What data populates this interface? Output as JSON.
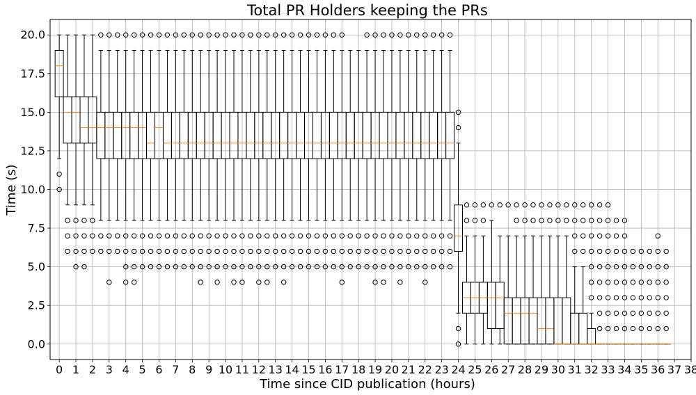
{
  "chart_data": {
    "type": "box",
    "title": "Total PR Holders keeping the PRs",
    "xlabel": "Time since CID publication (hours)",
    "ylabel": "Time (s)",
    "xlim": [
      -0.55,
      38.0
    ],
    "ylim": [
      -1.0,
      21.0
    ],
    "x_ticks": [
      0,
      1,
      2,
      3,
      4,
      5,
      6,
      7,
      8,
      9,
      10,
      11,
      12,
      13,
      14,
      15,
      16,
      17,
      18,
      19,
      20,
      21,
      22,
      23,
      24,
      25,
      26,
      27,
      28,
      29,
      30,
      31,
      32,
      33,
      34,
      35,
      36,
      37,
      38
    ],
    "y_ticks": [
      0.0,
      2.5,
      5.0,
      7.5,
      10.0,
      12.5,
      15.0,
      17.5,
      20.0
    ],
    "y_tick_labels": [
      "0.0",
      "2.5",
      "5.0",
      "7.5",
      "10.0",
      "12.5",
      "15.0",
      "17.5",
      "20.0"
    ],
    "grid": true,
    "colors": {
      "box": "#000000",
      "median": "#ff7f0e",
      "grid": "#b0b0b0",
      "flier": "#000000"
    },
    "box_width": 0.5,
    "boxes": [
      {
        "x": 0.0,
        "q1": 16,
        "median": 18,
        "q3": 19,
        "whislo": 12,
        "whishi": 20,
        "fliers": [
          10,
          11
        ]
      },
      {
        "x": 0.5,
        "q1": 13,
        "median": 15,
        "q3": 16,
        "whislo": 9,
        "whishi": 20,
        "fliers": [
          6,
          7,
          8
        ]
      },
      {
        "x": 1.0,
        "q1": 13,
        "median": 15,
        "q3": 16,
        "whislo": 9,
        "whishi": 20,
        "fliers": [
          5,
          6,
          7,
          8
        ]
      },
      {
        "x": 1.5,
        "q1": 13,
        "median": 14,
        "q3": 16,
        "whislo": 9,
        "whishi": 20,
        "fliers": [
          5,
          6,
          7,
          8
        ]
      },
      {
        "x": 2.0,
        "q1": 13,
        "median": 14,
        "q3": 16,
        "whislo": 9,
        "whishi": 20,
        "fliers": [
          6,
          7,
          8
        ]
      },
      {
        "x": 2.5,
        "q1": 12,
        "median": 14,
        "q3": 15,
        "whislo": 8,
        "whishi": 19,
        "fliers": [
          6,
          7,
          20
        ]
      },
      {
        "x": 3.0,
        "q1": 12,
        "median": 14,
        "q3": 15,
        "whislo": 8,
        "whishi": 19,
        "fliers": [
          4,
          6,
          7,
          20
        ]
      },
      {
        "x": 3.5,
        "q1": 12,
        "median": 14,
        "q3": 15,
        "whislo": 8,
        "whishi": 19,
        "fliers": [
          6,
          7,
          20
        ]
      },
      {
        "x": 4.0,
        "q1": 12,
        "median": 14,
        "q3": 15,
        "whislo": 8,
        "whishi": 19,
        "fliers": [
          4,
          5,
          6,
          7,
          20
        ]
      },
      {
        "x": 4.5,
        "q1": 12,
        "median": 14,
        "q3": 15,
        "whislo": 8,
        "whishi": 19,
        "fliers": [
          4,
          5,
          6,
          7,
          20
        ]
      },
      {
        "x": 5.0,
        "q1": 12,
        "median": 14,
        "q3": 15,
        "whislo": 8,
        "whishi": 19,
        "fliers": [
          5,
          6,
          7,
          20
        ]
      },
      {
        "x": 5.5,
        "q1": 12,
        "median": 13,
        "q3": 15,
        "whislo": 8,
        "whishi": 19,
        "fliers": [
          5,
          6,
          7,
          20
        ]
      },
      {
        "x": 6.0,
        "q1": 12,
        "median": 14,
        "q3": 15,
        "whislo": 8,
        "whishi": 19,
        "fliers": [
          5,
          6,
          7,
          20
        ]
      },
      {
        "x": 6.5,
        "q1": 12,
        "median": 13,
        "q3": 15,
        "whislo": 8,
        "whishi": 19,
        "fliers": [
          5,
          6,
          7,
          20
        ]
      },
      {
        "x": 7.0,
        "q1": 12,
        "median": 13,
        "q3": 15,
        "whislo": 8,
        "whishi": 19,
        "fliers": [
          5,
          6,
          7,
          20
        ]
      },
      {
        "x": 7.5,
        "q1": 12,
        "median": 13,
        "q3": 15,
        "whislo": 8,
        "whishi": 19,
        "fliers": [
          5,
          6,
          7,
          20
        ]
      },
      {
        "x": 8.0,
        "q1": 12,
        "median": 13,
        "q3": 15,
        "whislo": 8,
        "whishi": 19,
        "fliers": [
          5,
          6,
          7,
          20
        ]
      },
      {
        "x": 8.5,
        "q1": 12,
        "median": 13,
        "q3": 15,
        "whislo": 8,
        "whishi": 19,
        "fliers": [
          4,
          5,
          6,
          7,
          20
        ]
      },
      {
        "x": 9.0,
        "q1": 12,
        "median": 13,
        "q3": 15,
        "whislo": 8,
        "whishi": 19,
        "fliers": [
          5,
          6,
          7,
          20
        ]
      },
      {
        "x": 9.5,
        "q1": 12,
        "median": 13,
        "q3": 15,
        "whislo": 8,
        "whishi": 19,
        "fliers": [
          4,
          5,
          6,
          7,
          20
        ]
      },
      {
        "x": 10.0,
        "q1": 12,
        "median": 13,
        "q3": 15,
        "whislo": 8,
        "whishi": 19,
        "fliers": [
          5,
          6,
          7,
          20
        ]
      },
      {
        "x": 10.5,
        "q1": 12,
        "median": 13,
        "q3": 15,
        "whislo": 8,
        "whishi": 19,
        "fliers": [
          4,
          5,
          6,
          7,
          20
        ]
      },
      {
        "x": 11.0,
        "q1": 12,
        "median": 13,
        "q3": 15,
        "whislo": 8,
        "whishi": 19,
        "fliers": [
          4,
          5,
          6,
          7,
          20
        ]
      },
      {
        "x": 11.5,
        "q1": 12,
        "median": 13,
        "q3": 15,
        "whislo": 8,
        "whishi": 19,
        "fliers": [
          5,
          6,
          7,
          20
        ]
      },
      {
        "x": 12.0,
        "q1": 12,
        "median": 13,
        "q3": 15,
        "whislo": 8,
        "whishi": 19,
        "fliers": [
          4,
          5,
          6,
          7,
          20
        ]
      },
      {
        "x": 12.5,
        "q1": 12,
        "median": 13,
        "q3": 15,
        "whislo": 8,
        "whishi": 19,
        "fliers": [
          4,
          5,
          6,
          7,
          20
        ]
      },
      {
        "x": 13.0,
        "q1": 12,
        "median": 13,
        "q3": 15,
        "whislo": 8,
        "whishi": 19,
        "fliers": [
          5,
          6,
          7,
          20
        ]
      },
      {
        "x": 13.5,
        "q1": 12,
        "median": 13,
        "q3": 15,
        "whislo": 8,
        "whishi": 19,
        "fliers": [
          4,
          5,
          6,
          7,
          20
        ]
      },
      {
        "x": 14.0,
        "q1": 12,
        "median": 13,
        "q3": 15,
        "whislo": 8,
        "whishi": 19,
        "fliers": [
          5,
          6,
          7,
          20
        ]
      },
      {
        "x": 14.5,
        "q1": 12,
        "median": 13,
        "q3": 15,
        "whislo": 8,
        "whishi": 19,
        "fliers": [
          5,
          6,
          7,
          20
        ]
      },
      {
        "x": 15.0,
        "q1": 12,
        "median": 13,
        "q3": 15,
        "whislo": 8,
        "whishi": 19,
        "fliers": [
          5,
          6,
          7,
          20
        ]
      },
      {
        "x": 15.5,
        "q1": 12,
        "median": 13,
        "q3": 15,
        "whislo": 8,
        "whishi": 19,
        "fliers": [
          5,
          6,
          7,
          20
        ]
      },
      {
        "x": 16.0,
        "q1": 12,
        "median": 13,
        "q3": 15,
        "whislo": 8,
        "whishi": 19,
        "fliers": [
          5,
          6,
          7,
          20
        ]
      },
      {
        "x": 16.5,
        "q1": 12,
        "median": 13,
        "q3": 15,
        "whislo": 8,
        "whishi": 19,
        "fliers": [
          5,
          6,
          7,
          20
        ]
      },
      {
        "x": 17.0,
        "q1": 12,
        "median": 13,
        "q3": 15,
        "whislo": 8,
        "whishi": 19,
        "fliers": [
          4,
          5,
          6,
          7,
          20
        ]
      },
      {
        "x": 17.5,
        "q1": 12,
        "median": 13,
        "q3": 15,
        "whislo": 8,
        "whishi": 19,
        "fliers": [
          5,
          6,
          7
        ]
      },
      {
        "x": 18.0,
        "q1": 12,
        "median": 13,
        "q3": 15,
        "whislo": 8,
        "whishi": 19,
        "fliers": [
          5,
          6,
          7
        ]
      },
      {
        "x": 18.5,
        "q1": 12,
        "median": 13,
        "q3": 15,
        "whislo": 8,
        "whishi": 19,
        "fliers": [
          5,
          6,
          7,
          20
        ]
      },
      {
        "x": 19.0,
        "q1": 12,
        "median": 13,
        "q3": 15,
        "whislo": 8,
        "whishi": 19,
        "fliers": [
          4,
          5,
          6,
          7,
          20
        ]
      },
      {
        "x": 19.5,
        "q1": 12,
        "median": 13,
        "q3": 15,
        "whislo": 8,
        "whishi": 19,
        "fliers": [
          4,
          5,
          6,
          7,
          20
        ]
      },
      {
        "x": 20.0,
        "q1": 12,
        "median": 13,
        "q3": 15,
        "whislo": 8,
        "whishi": 19,
        "fliers": [
          5,
          6,
          7,
          20
        ]
      },
      {
        "x": 20.5,
        "q1": 12,
        "median": 13,
        "q3": 15,
        "whislo": 8,
        "whishi": 19,
        "fliers": [
          4,
          5,
          6,
          7,
          20
        ]
      },
      {
        "x": 21.0,
        "q1": 12,
        "median": 13,
        "q3": 15,
        "whislo": 8,
        "whishi": 19,
        "fliers": [
          5,
          6,
          7,
          20
        ]
      },
      {
        "x": 21.5,
        "q1": 12,
        "median": 13,
        "q3": 15,
        "whislo": 8,
        "whishi": 19,
        "fliers": [
          5,
          6,
          7,
          20
        ]
      },
      {
        "x": 22.0,
        "q1": 12,
        "median": 13,
        "q3": 15,
        "whislo": 8,
        "whishi": 19,
        "fliers": [
          4,
          5,
          6,
          7,
          20
        ]
      },
      {
        "x": 22.5,
        "q1": 12,
        "median": 13,
        "q3": 15,
        "whislo": 8,
        "whishi": 19,
        "fliers": [
          5,
          6,
          7,
          20
        ]
      },
      {
        "x": 23.0,
        "q1": 12,
        "median": 13,
        "q3": 15,
        "whislo": 8,
        "whishi": 19,
        "fliers": [
          5,
          6,
          7,
          20
        ]
      },
      {
        "x": 23.5,
        "q1": 12,
        "median": 13,
        "q3": 15,
        "whislo": 8,
        "whishi": 19,
        "fliers": [
          5,
          6,
          7,
          20
        ]
      },
      {
        "x": 24.0,
        "q1": 6,
        "median": 7,
        "q3": 9,
        "whislo": 2,
        "whishi": 13,
        "fliers": [
          0,
          1,
          14,
          15
        ]
      },
      {
        "x": 24.5,
        "q1": 2,
        "median": 3,
        "q3": 4,
        "whislo": 0,
        "whishi": 7,
        "fliers": [
          8,
          9
        ]
      },
      {
        "x": 25.0,
        "q1": 2,
        "median": 3,
        "q3": 4,
        "whislo": 0,
        "whishi": 7,
        "fliers": [
          8,
          9
        ]
      },
      {
        "x": 25.5,
        "q1": 2,
        "median": 3,
        "q3": 4,
        "whislo": 0,
        "whishi": 7,
        "fliers": [
          8,
          9
        ]
      },
      {
        "x": 26.0,
        "q1": 1,
        "median": 3,
        "q3": 4,
        "whislo": 0,
        "whishi": 8,
        "fliers": [
          9
        ]
      },
      {
        "x": 26.5,
        "q1": 1,
        "median": 3,
        "q3": 4,
        "whislo": 0,
        "whishi": 7,
        "fliers": [
          9
        ]
      },
      {
        "x": 27.0,
        "q1": 0,
        "median": 2,
        "q3": 3,
        "whislo": 0,
        "whishi": 7,
        "fliers": [
          9
        ]
      },
      {
        "x": 27.5,
        "q1": 0,
        "median": 2,
        "q3": 3,
        "whislo": 0,
        "whishi": 7,
        "fliers": [
          8,
          9
        ]
      },
      {
        "x": 28.0,
        "q1": 0,
        "median": 2,
        "q3": 3,
        "whislo": 0,
        "whishi": 7,
        "fliers": [
          8,
          9
        ]
      },
      {
        "x": 28.5,
        "q1": 0,
        "median": 2,
        "q3": 3,
        "whislo": 0,
        "whishi": 7,
        "fliers": [
          8,
          9
        ]
      },
      {
        "x": 29.0,
        "q1": 0,
        "median": 1,
        "q3": 3,
        "whislo": 0,
        "whishi": 7,
        "fliers": [
          8,
          9
        ]
      },
      {
        "x": 29.5,
        "q1": 0,
        "median": 1,
        "q3": 3,
        "whislo": 0,
        "whishi": 7,
        "fliers": [
          8,
          9
        ]
      },
      {
        "x": 30.0,
        "q1": 0,
        "median": 0,
        "q3": 3,
        "whislo": 0,
        "whishi": 7,
        "fliers": [
          8,
          9
        ]
      },
      {
        "x": 30.5,
        "q1": 0,
        "median": 0,
        "q3": 3,
        "whislo": 0,
        "whishi": 7,
        "fliers": [
          8,
          9
        ]
      },
      {
        "x": 31.0,
        "q1": 0,
        "median": 0,
        "q3": 2,
        "whislo": 0,
        "whishi": 5,
        "fliers": [
          6,
          7,
          8,
          9
        ]
      },
      {
        "x": 31.5,
        "q1": 0,
        "median": 0,
        "q3": 2,
        "whislo": 0,
        "whishi": 5,
        "fliers": [
          6,
          7,
          8,
          9
        ]
      },
      {
        "x": 32.0,
        "q1": 0,
        "median": 0,
        "q3": 1,
        "whislo": 0,
        "whishi": 2,
        "fliers": [
          3,
          4,
          5,
          6,
          7,
          8,
          9
        ]
      },
      {
        "x": 32.5,
        "q1": 0,
        "median": 0,
        "q3": 0,
        "whislo": 0,
        "whishi": 0,
        "fliers": [
          1,
          2,
          3,
          4,
          5,
          6,
          7,
          8,
          9
        ]
      },
      {
        "x": 33.0,
        "q1": 0,
        "median": 0,
        "q3": 0,
        "whislo": 0,
        "whishi": 0,
        "fliers": [
          1,
          2,
          3,
          4,
          5,
          6,
          7,
          8,
          9
        ]
      },
      {
        "x": 33.5,
        "q1": 0,
        "median": 0,
        "q3": 0,
        "whislo": 0,
        "whishi": 0,
        "fliers": [
          1,
          2,
          3,
          4,
          5,
          6,
          7,
          8
        ]
      },
      {
        "x": 34.0,
        "q1": 0,
        "median": 0,
        "q3": 0,
        "whislo": 0,
        "whishi": 0,
        "fliers": [
          1,
          2,
          3,
          4,
          5,
          6,
          7,
          8
        ]
      },
      {
        "x": 34.5,
        "q1": 0,
        "median": 0,
        "q3": 0,
        "whislo": 0,
        "whishi": 0,
        "fliers": [
          1,
          2,
          3,
          4,
          5,
          6
        ]
      },
      {
        "x": 35.0,
        "q1": 0,
        "median": 0,
        "q3": 0,
        "whislo": 0,
        "whishi": 0,
        "fliers": [
          1,
          2,
          3,
          4,
          5,
          6
        ]
      },
      {
        "x": 35.5,
        "q1": 0,
        "median": 0,
        "q3": 0,
        "whislo": 0,
        "whishi": 0,
        "fliers": [
          1,
          2,
          3,
          4,
          5,
          6
        ]
      },
      {
        "x": 36.0,
        "q1": 0,
        "median": 0,
        "q3": 0,
        "whislo": 0,
        "whishi": 0,
        "fliers": [
          1,
          2,
          3,
          4,
          5,
          6,
          7
        ]
      },
      {
        "x": 36.5,
        "q1": 0,
        "median": 0,
        "q3": 0,
        "whislo": 0,
        "whishi": 0,
        "fliers": [
          1,
          2,
          3,
          4,
          5,
          6
        ]
      }
    ]
  }
}
